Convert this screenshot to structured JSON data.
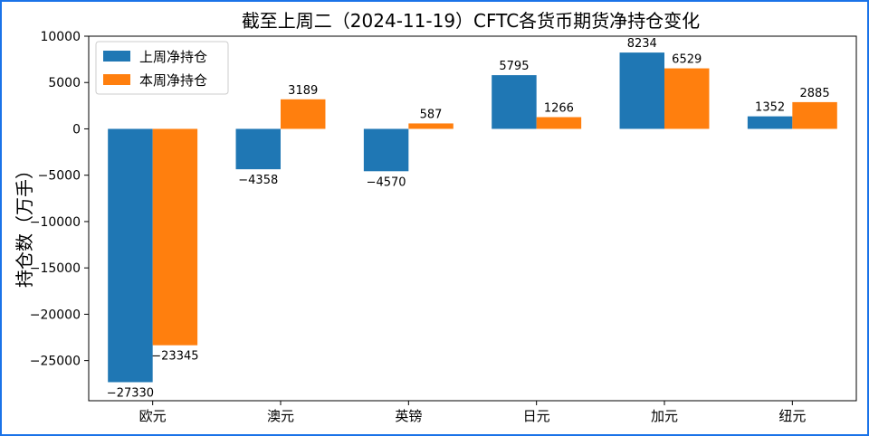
{
  "colors": {
    "series1": "#1f77b4",
    "series2": "#ff7f0e",
    "frame": "#1a73e8"
  },
  "chart_data": {
    "type": "bar",
    "title": "截至上周二（2024-11-19）CFTC各货币期货净持仓变化",
    "xlabel": "",
    "ylabel": "持仓数（万手）",
    "categories": [
      "欧元",
      "澳元",
      "英镑",
      "日元",
      "加元",
      "纽元"
    ],
    "series": [
      {
        "name": "上周净持仓",
        "values": [
          -27330,
          -4358,
          -4570,
          5795,
          8234,
          1352
        ]
      },
      {
        "name": "本周净持仓",
        "values": [
          -23345,
          3189,
          587,
          1266,
          6529,
          2885
        ]
      }
    ],
    "ylim": [
      -29330,
      10000
    ],
    "yticks": [
      10000,
      5000,
      0,
      -5000,
      -10000,
      -15000,
      -20000,
      -25000
    ],
    "ytick_labels": [
      "10000",
      "5000",
      "0",
      "−5000",
      "−10000",
      "−15000",
      "−20000",
      "−25000"
    ],
    "value_labels": {
      "series1": [
        "−27330",
        "−4358",
        "−4570",
        "5795",
        "8234",
        "1352"
      ],
      "series2": [
        "−23345",
        "3189",
        "587",
        "1266",
        "6529",
        "2885"
      ]
    },
    "grid": false,
    "legend_position": "top-left"
  }
}
